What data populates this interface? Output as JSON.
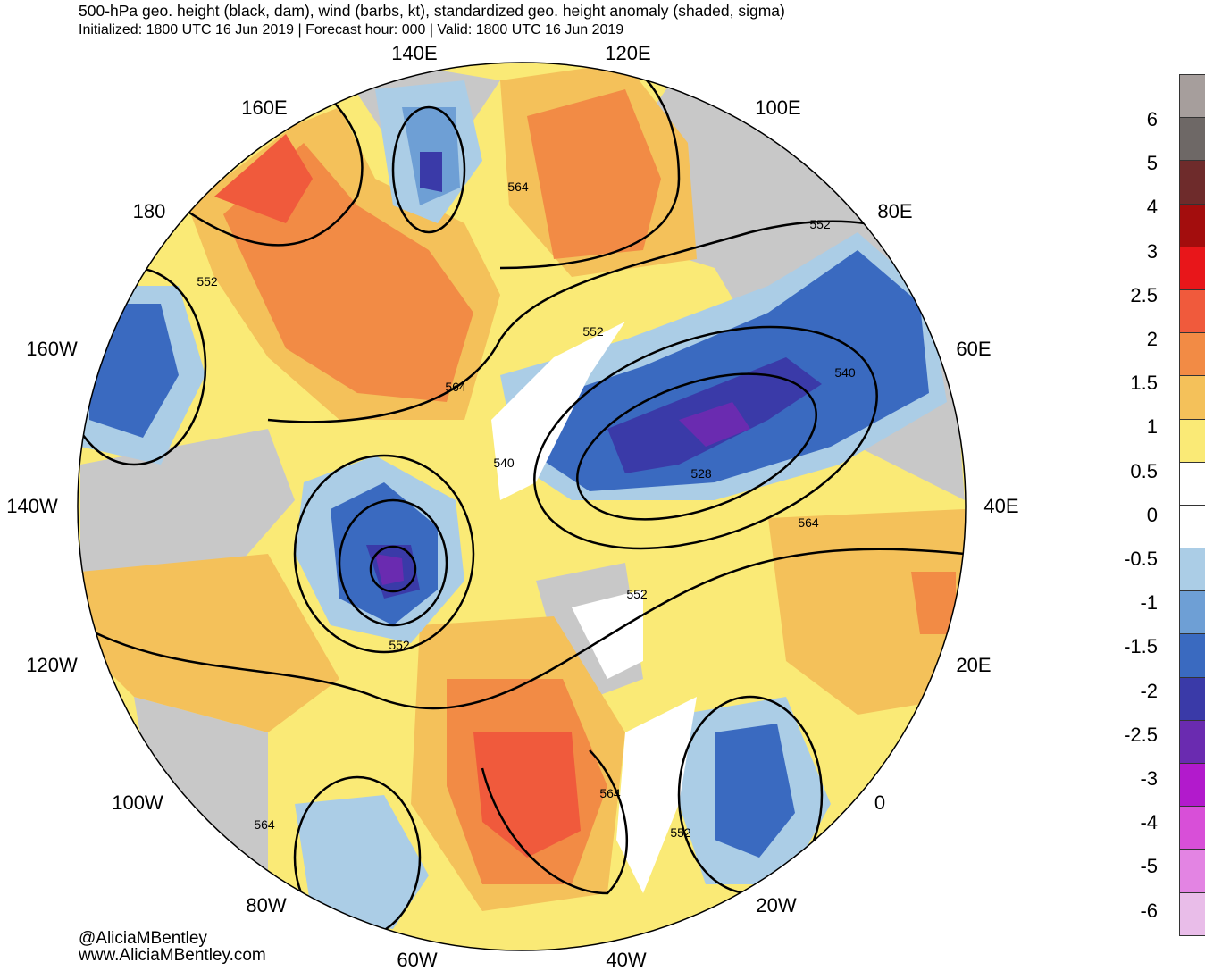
{
  "header": {
    "title": "500-hPa geo. height (black, dam), wind (barbs, kt), standardized geo. height anomaly (shaded, sigma)",
    "subtitle": "Initialized: 1800 UTC 16 Jun 2019 | Forecast hour: 000 | Valid: 1800 UTC 16 Jun 2019"
  },
  "map": {
    "projection": "north-polar-stereographic",
    "longitude_labels": [
      "140E",
      "120E",
      "160E",
      "100E",
      "180",
      "80E",
      "160W",
      "60E",
      "140W",
      "40E",
      "120W",
      "20E",
      "100W",
      "0",
      "80W",
      "20W",
      "60W",
      "40W"
    ],
    "contour_labels": [
      "564",
      "552",
      "564",
      "552",
      "540",
      "552",
      "540",
      "528",
      "564",
      "552",
      "552",
      "564",
      "564",
      "552"
    ],
    "contour_color": "#000000"
  },
  "credits": {
    "handle": "@AliciaMBentley",
    "website": "www.AliciaMBentley.com"
  },
  "colorbar": {
    "labels": [
      "6",
      "5",
      "4",
      "3",
      "2.5",
      "2",
      "1.5",
      "1",
      "0.5",
      "0",
      "-0.5",
      "-1",
      "-1.5",
      "-2",
      "-2.5",
      "-3",
      "-4",
      "-5",
      "-6"
    ],
    "colors": [
      "#a69e9c",
      "#6e6866",
      "#6e2b2b",
      "#a30d0d",
      "#e8161a",
      "#f05a3c",
      "#f28b45",
      "#f4c15a",
      "#faea76",
      "#ffffff",
      "#ffffff",
      "#abcde6",
      "#6e9fd5",
      "#3a6ac0",
      "#3a3aa8",
      "#6a2bb0",
      "#b21acc",
      "#d84fd8",
      "#e384e3",
      "#e9bde9"
    ]
  }
}
